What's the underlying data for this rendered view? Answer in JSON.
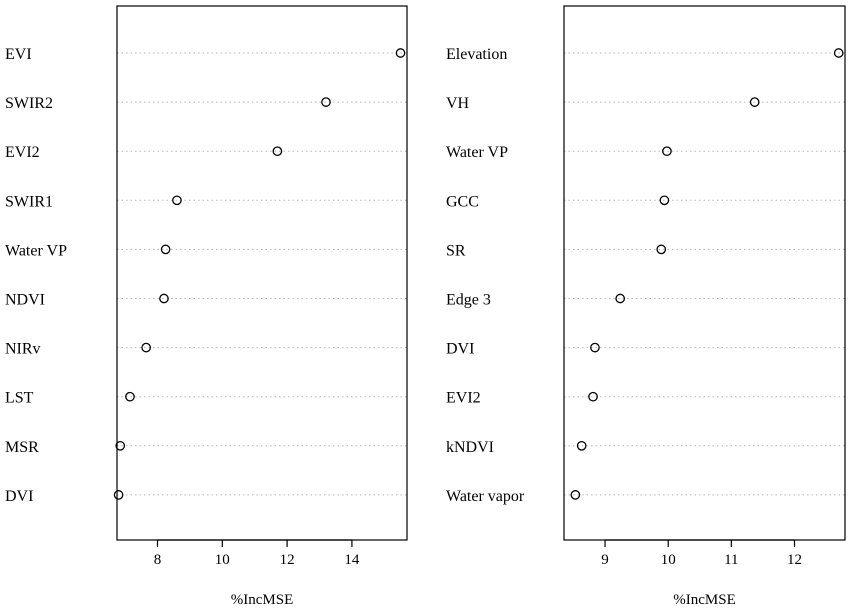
{
  "chart_data": [
    {
      "type": "dotchart",
      "xlabel": "%IncMSE",
      "xlim": [
        6.75,
        15.7
      ],
      "xticks": [
        8,
        10,
        12,
        14
      ],
      "grid": "dotted-horizontal",
      "categories": [
        "EVI",
        "SWIR2",
        "EVI2",
        "SWIR1",
        "Water  VP",
        "NDVI",
        "NIRv",
        "LST",
        "MSR",
        "DVI"
      ],
      "values": [
        15.5,
        13.2,
        11.7,
        8.6,
        8.25,
        8.2,
        7.65,
        7.15,
        6.85,
        6.8
      ]
    },
    {
      "type": "dotchart",
      "xlabel": "%IncMSE",
      "xlim": [
        8.35,
        12.8
      ],
      "xticks": [
        9,
        10,
        11,
        12
      ],
      "grid": "dotted-horizontal",
      "categories": [
        "Elevation",
        "VH",
        "Water VP",
        "GCC",
        "SR",
        "Edge  3",
        "DVI",
        "EVI2",
        "kNDVI",
        "Water  vapor"
      ],
      "values": [
        12.7,
        11.37,
        9.98,
        9.94,
        9.89,
        9.24,
        8.84,
        8.81,
        8.63,
        8.53
      ]
    }
  ]
}
